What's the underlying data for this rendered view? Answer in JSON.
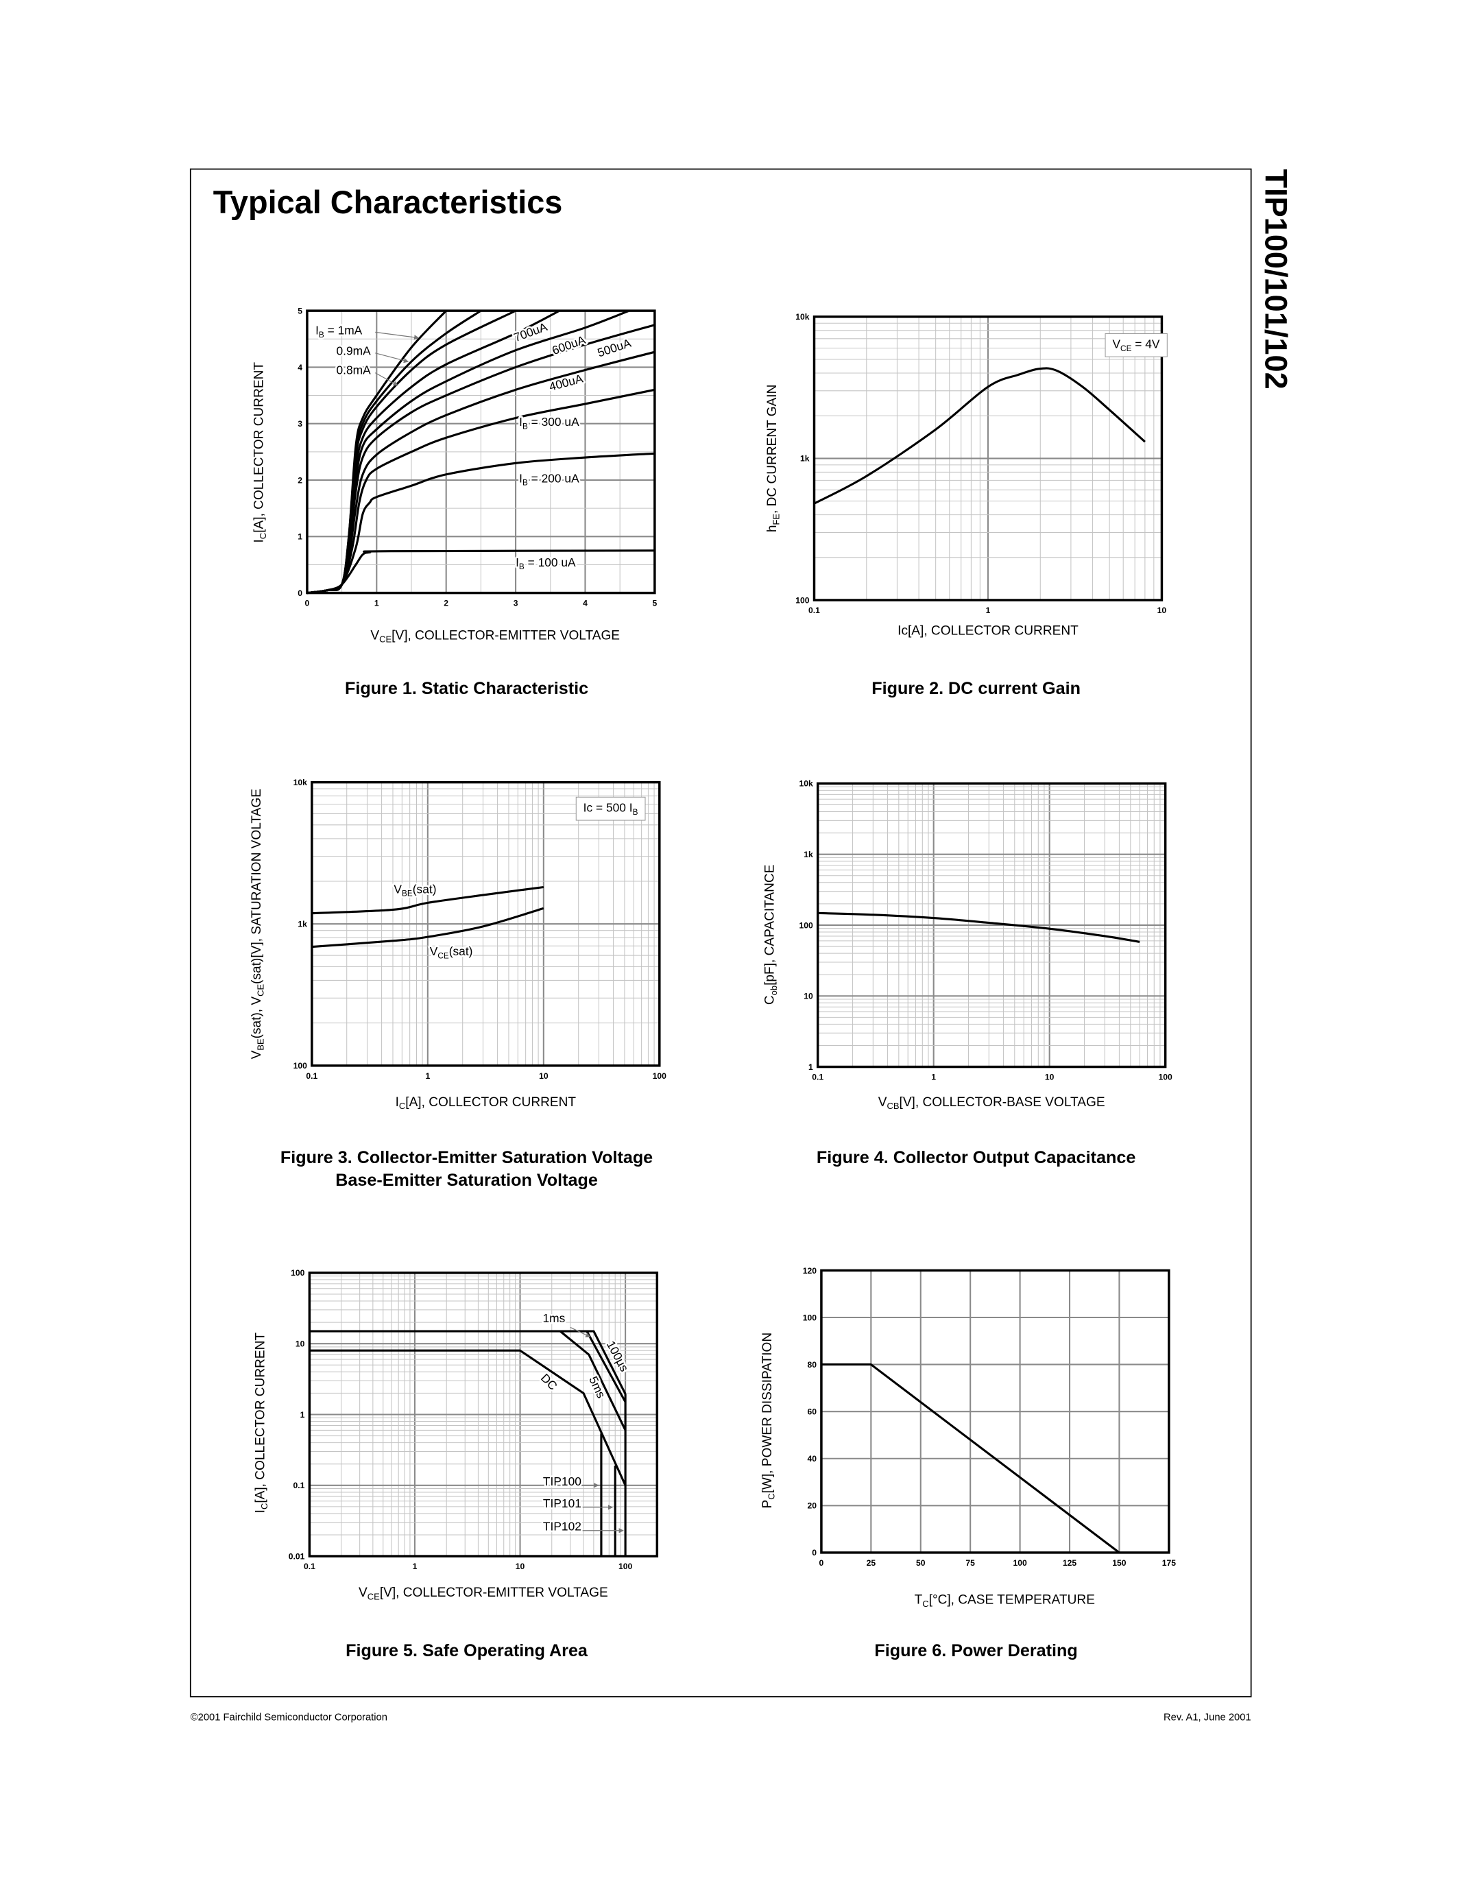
{
  "page": {
    "title": "Typical Characteristics",
    "side_title": "TIP100/101/102",
    "footer_left": "©2001 Fairchild Semiconductor Corporation",
    "footer_right": "Rev. A1, June 2001"
  },
  "chart_data": [
    {
      "type": "line",
      "caption": [
        "Figure 1. Static Characteristic"
      ],
      "xlabel": [
        "V",
        "CE",
        "[V], COLLECTOR-EMITTER VOLTAGE"
      ],
      "ylabel": [
        "I",
        "C",
        "[A], COLLECTOR CURRENT"
      ],
      "xscale": "linear",
      "yscale": "linear",
      "xlim": [
        0,
        5
      ],
      "ylim": [
        0,
        5
      ],
      "grid": {
        "x_major": 1,
        "x_minor": 0.5,
        "y_major": 1,
        "y_minor": 0.5
      },
      "xticks": [
        0,
        1,
        2,
        3,
        4,
        5
      ],
      "xticklabels": [
        "0",
        "1",
        "2",
        "3",
        "4",
        "5"
      ],
      "yticks": [
        0,
        1,
        2,
        3,
        4,
        5
      ],
      "yticklabels": [
        "0",
        "1",
        "2",
        "3",
        "4",
        "5"
      ],
      "series": [
        {
          "name": "1mA",
          "x": [
            0,
            0.3,
            0.5,
            0.6,
            0.7,
            0.8,
            1,
            1.5,
            2
          ],
          "y": [
            0,
            0.05,
            0.15,
            1,
            2.6,
            3.1,
            3.5,
            4.35,
            5
          ]
        },
        {
          "name": "0.9mA",
          "x": [
            0,
            0.3,
            0.5,
            0.6,
            0.7,
            0.8,
            1,
            1.5,
            2,
            2.5
          ],
          "y": [
            0,
            0.05,
            0.15,
            1,
            2.5,
            3.0,
            3.4,
            4.1,
            4.6,
            5
          ]
        },
        {
          "name": "0.8mA",
          "x": [
            0,
            0.3,
            0.5,
            0.6,
            0.7,
            0.8,
            1,
            1.5,
            2,
            3
          ],
          "y": [
            0,
            0.05,
            0.15,
            0.95,
            2.4,
            2.9,
            3.3,
            3.95,
            4.4,
            5
          ]
        },
        {
          "name": "700uA",
          "x": [
            0,
            0.3,
            0.5,
            0.6,
            0.7,
            0.8,
            1,
            1.5,
            2,
            3,
            3.63
          ],
          "y": [
            0,
            0.05,
            0.15,
            0.9,
            2.2,
            2.75,
            3.1,
            3.65,
            4.05,
            4.6,
            5
          ]
        },
        {
          "name": "600uA",
          "x": [
            0,
            0.3,
            0.5,
            0.6,
            0.7,
            0.8,
            1,
            1.5,
            2,
            3,
            4,
            4.63
          ],
          "y": [
            0,
            0.05,
            0.15,
            0.85,
            2.0,
            2.6,
            2.9,
            3.4,
            3.75,
            4.3,
            4.7,
            5
          ]
        },
        {
          "name": "500uA",
          "x": [
            0,
            0.3,
            0.5,
            0.6,
            0.7,
            0.8,
            1,
            1.5,
            2,
            3,
            4,
            5
          ],
          "y": [
            0,
            0.05,
            0.15,
            0.75,
            1.8,
            2.4,
            2.75,
            3.2,
            3.5,
            4.0,
            4.4,
            4.75
          ]
        },
        {
          "name": "400uA",
          "x": [
            0,
            0.3,
            0.5,
            0.6,
            0.7,
            0.8,
            1,
            1.5,
            2,
            3,
            4,
            5
          ],
          "y": [
            0,
            0.05,
            0.15,
            0.6,
            1.5,
            2.1,
            2.45,
            2.85,
            3.15,
            3.6,
            3.95,
            4.27
          ]
        },
        {
          "name": "300 uA",
          "x": [
            0,
            0.3,
            0.5,
            0.65,
            0.75,
            0.85,
            1,
            1.5,
            2,
            3,
            4,
            5
          ],
          "y": [
            0,
            0.05,
            0.15,
            0.8,
            1.6,
            2.0,
            2.2,
            2.5,
            2.75,
            3.1,
            3.35,
            3.6
          ]
        },
        {
          "name": "200 uA",
          "x": [
            0,
            0.3,
            0.5,
            0.7,
            0.8,
            0.9,
            1,
            1.5,
            2,
            3,
            4,
            5
          ],
          "y": [
            0,
            0.05,
            0.15,
            0.8,
            1.4,
            1.6,
            1.7,
            1.9,
            2.1,
            2.3,
            2.4,
            2.47
          ]
        },
        {
          "name": "100 uA",
          "x": [
            0,
            0.3,
            0.5,
            0.7,
            0.8,
            0.9,
            1.2,
            5
          ],
          "y": [
            0,
            0.05,
            0.15,
            0.5,
            0.68,
            0.72,
            0.74,
            0.75
          ]
        }
      ],
      "annotations": [
        {
          "text": [
            "I",
            "B",
            " = 1mA"
          ],
          "x": 0.12,
          "y": 4.58
        },
        {
          "text": [
            "0.9mA"
          ],
          "x": 0.42,
          "y": 4.22
        },
        {
          "text": [
            "0.8mA"
          ],
          "x": 0.42,
          "y": 3.88
        },
        {
          "text": [
            "700uA"
          ],
          "x": 3.0,
          "y": 4.45
        },
        {
          "text": [
            "600uA"
          ],
          "x": 3.55,
          "y": 4.22
        },
        {
          "text": [
            "500uA"
          ],
          "x": 4.2,
          "y": 4.18
        },
        {
          "text": [
            "400uA"
          ],
          "x": 3.5,
          "y": 3.58
        },
        {
          "text": [
            "I",
            "B",
            " = 300 uA"
          ],
          "x": 3.05,
          "y": 2.96
        },
        {
          "text": [
            "I",
            "B",
            " = 200 uA"
          ],
          "x": 3.05,
          "y": 1.96
        },
        {
          "text": [
            "I",
            "B",
            " = 100 uA"
          ],
          "x": 3.0,
          "y": 0.47
        }
      ]
    },
    {
      "type": "line",
      "caption": [
        "Figure 2. DC current Gain"
      ],
      "xlabel": [
        "Ic[A], COLLECTOR CURRENT"
      ],
      "ylabel": [
        "h",
        "FE",
        ", DC CURRENT GAIN"
      ],
      "xscale": "log",
      "yscale": "log",
      "xlim": [
        0.1,
        10
      ],
      "ylim": [
        100,
        10000
      ],
      "xticks": [
        0.1,
        1,
        10
      ],
      "xticklabels": [
        "0.1",
        "1",
        "10"
      ],
      "yticks": [
        100,
        1000,
        10000
      ],
      "yticklabels": [
        "100",
        "1k",
        "10k"
      ],
      "series": [
        {
          "x": [
            0.1,
            0.2,
            0.5,
            1,
            1.5,
            2,
            2.5,
            3.5,
            5,
            8
          ],
          "y": [
            480,
            750,
            1600,
            3200,
            3900,
            4300,
            4150,
            3200,
            2200,
            1310
          ]
        }
      ],
      "annotations": [
        {
          "text": [
            "V",
            "CE",
            " = 4V"
          ],
          "x": 5.2,
          "y": 6000,
          "boxed": true
        }
      ]
    },
    {
      "type": "line",
      "caption": [
        "Figure 3. Collector-Emitter Saturation Voltage",
        "Base-Emitter Saturation Voltage"
      ],
      "xlabel": [
        "I",
        "C",
        "[A], COLLECTOR CURRENT"
      ],
      "ylabel": [
        "V",
        "BE",
        "(sat), V",
        "CE",
        "(sat)[V], SATURATION VOLTAGE"
      ],
      "xscale": "log",
      "yscale": "log",
      "xlim": [
        0.1,
        100
      ],
      "ylim": [
        100,
        10000
      ],
      "xticks": [
        0.1,
        1,
        10,
        100
      ],
      "xticklabels": [
        "0.1",
        "1",
        "10",
        "100"
      ],
      "yticks": [
        100,
        1000,
        10000
      ],
      "yticklabels": [
        "100",
        "1k",
        "10k"
      ],
      "series": [
        {
          "name": "VBE(sat)",
          "x": [
            0.1,
            0.5,
            1,
            3,
            10
          ],
          "y": [
            1190,
            1260,
            1410,
            1600,
            1820
          ]
        },
        {
          "name": "VCE(sat)",
          "x": [
            0.1,
            0.5,
            1,
            3,
            10
          ],
          "y": [
            690,
            760,
            810,
            960,
            1290
          ]
        }
      ],
      "annotations": [
        {
          "text": [
            "V",
            "BE",
            "(sat)"
          ],
          "x": 0.51,
          "y": 1650
        },
        {
          "text": [
            "V",
            "CE",
            "(sat)"
          ],
          "x": 1.04,
          "y": 600
        },
        {
          "text": [
            "Ic = 500 I",
            "B"
          ],
          "x": 22,
          "y": 6200,
          "boxed": true
        }
      ]
    },
    {
      "type": "line",
      "caption": [
        "Figure 4. Collector Output Capacitance"
      ],
      "xlabel": [
        "V",
        "CB",
        "[V], COLLECTOR-BASE VOLTAGE"
      ],
      "ylabel": [
        "C",
        "ob",
        "[pF], CAPACITANCE"
      ],
      "xscale": "log",
      "yscale": "log",
      "xlim": [
        0.1,
        100
      ],
      "ylim": [
        1,
        10000
      ],
      "xticks": [
        0.1,
        1,
        10,
        100
      ],
      "xticklabels": [
        "0.1",
        "1",
        "10",
        "100"
      ],
      "yticks": [
        1,
        10,
        100,
        1000,
        10000
      ],
      "yticklabels": [
        "1",
        "10",
        "100",
        "1k",
        "10k"
      ],
      "series": [
        {
          "x": [
            0.1,
            0.3,
            1,
            3,
            10,
            30,
            60
          ],
          "y": [
            148,
            140,
            126,
            108,
            89,
            70,
            58
          ]
        }
      ],
      "annotations": []
    },
    {
      "type": "line",
      "caption": [
        "Figure 5. Safe Operating Area"
      ],
      "xlabel": [
        "V",
        "CE",
        "[V], COLLECTOR-EMITTER VOLTAGE"
      ],
      "ylabel": [
        "I",
        "C",
        "[A], COLLECTOR CURRENT"
      ],
      "xscale": "log",
      "yscale": "log",
      "xlim": [
        0.1,
        200
      ],
      "ylim": [
        0.01,
        100
      ],
      "xticks": [
        0.1,
        1,
        10,
        100
      ],
      "xticklabels": [
        "0.1",
        "1",
        "10",
        "100"
      ],
      "yticks": [
        0.01,
        0.1,
        1,
        10,
        100
      ],
      "yticklabels": [
        "0.01",
        "0.1",
        "1",
        "10",
        "100"
      ],
      "series": [
        {
          "name": "100µs",
          "x": [
            0.1,
            50,
            100
          ],
          "y": [
            15,
            15,
            1.95
          ]
        },
        {
          "name": "1ms",
          "x": [
            43,
            100
          ],
          "y": [
            15,
            1.5
          ]
        },
        {
          "name": "5ms",
          "x": [
            24,
            45,
            100
          ],
          "y": [
            15,
            7,
            0.6
          ]
        },
        {
          "name": "DC",
          "x": [
            0.1,
            10,
            40,
            100
          ],
          "y": [
            8,
            8,
            2,
            0.1
          ]
        },
        {
          "name": "TIP100",
          "x": [
            59,
            59
          ],
          "y": [
            0.54,
            0.01
          ]
        },
        {
          "name": "TIP101",
          "x": [
            80,
            80
          ],
          "y": [
            0.19,
            0.01
          ]
        },
        {
          "name": "TIP102",
          "x": [
            100,
            100
          ],
          "y": [
            1.95,
            0.01
          ]
        }
      ],
      "annotations": [
        {
          "text": [
            "1ms"
          ],
          "x": 16.4,
          "y": 20
        },
        {
          "text": [
            "100µs"
          ],
          "x": 66,
          "y": 10
        },
        {
          "text": [
            "5ms"
          ],
          "x": 45,
          "y": 3.2
        },
        {
          "text": [
            "DC"
          ],
          "x": 15.5,
          "y": 3.2
        },
        {
          "text": [
            "TIP100"
          ],
          "x": 16.5,
          "y": 0.1
        },
        {
          "text": [
            "TIP101"
          ],
          "x": 16.5,
          "y": 0.049
        },
        {
          "text": [
            "TIP102"
          ],
          "x": 16.5,
          "y": 0.023
        }
      ]
    },
    {
      "type": "line",
      "caption": [
        "Figure 6. Power Derating"
      ],
      "xlabel": [
        "T",
        "C",
        "[°C], CASE TEMPERATURE"
      ],
      "ylabel": [
        "P",
        "C",
        "[W], POWER DISSIPATION"
      ],
      "xscale": "linear",
      "yscale": "linear",
      "xlim": [
        0,
        175
      ],
      "ylim": [
        0,
        120
      ],
      "grid": {
        "x_major": 25,
        "y_major": 20
      },
      "xticks": [
        0,
        25,
        50,
        75,
        100,
        125,
        150,
        175
      ],
      "xticklabels": [
        "0",
        "25",
        "50",
        "75",
        "100",
        "125",
        "150",
        "175"
      ],
      "yticks": [
        0,
        20,
        40,
        60,
        80,
        100,
        120
      ],
      "yticklabels": [
        "0",
        "20",
        "40",
        "60",
        "80",
        "100",
        "120"
      ],
      "series": [
        {
          "x": [
            0,
            25,
            150
          ],
          "y": [
            80,
            80,
            0
          ]
        }
      ],
      "annotations": []
    }
  ]
}
